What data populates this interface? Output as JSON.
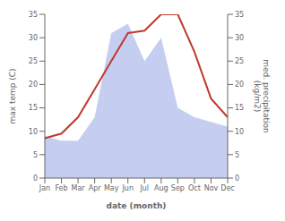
{
  "chart_data": {
    "type": "line",
    "xlabel": "date (month)",
    "ylabel": "max temp (C)",
    "y2label": "med. precipitation\n(kg/m2)",
    "categories": [
      "Jan",
      "Feb",
      "Mar",
      "Apr",
      "May",
      "Jun",
      "Jul",
      "Aug",
      "Sep",
      "Oct",
      "Nov",
      "Dec"
    ],
    "series": [
      {
        "type": "area",
        "axis": "y2",
        "color": "#c5cef0",
        "values": [
          9,
          8,
          8,
          13,
          31,
          33,
          25,
          30,
          15,
          13,
          12,
          11
        ]
      },
      {
        "type": "line",
        "color": "#c0392b",
        "values": [
          8.5,
          9.5,
          13.0,
          19.0,
          25.0,
          31.0,
          31.5,
          35.0,
          35.0,
          27.0,
          17.0,
          13.0
        ]
      }
    ],
    "ylim": [
      0,
      35
    ],
    "yticks": [
      0,
      5,
      10,
      15,
      20,
      25,
      30,
      35
    ],
    "y2lim": [
      0,
      35
    ],
    "y2ticks": [
      0,
      5,
      10,
      15,
      20,
      25,
      30,
      35
    ],
    "grid": false
  }
}
